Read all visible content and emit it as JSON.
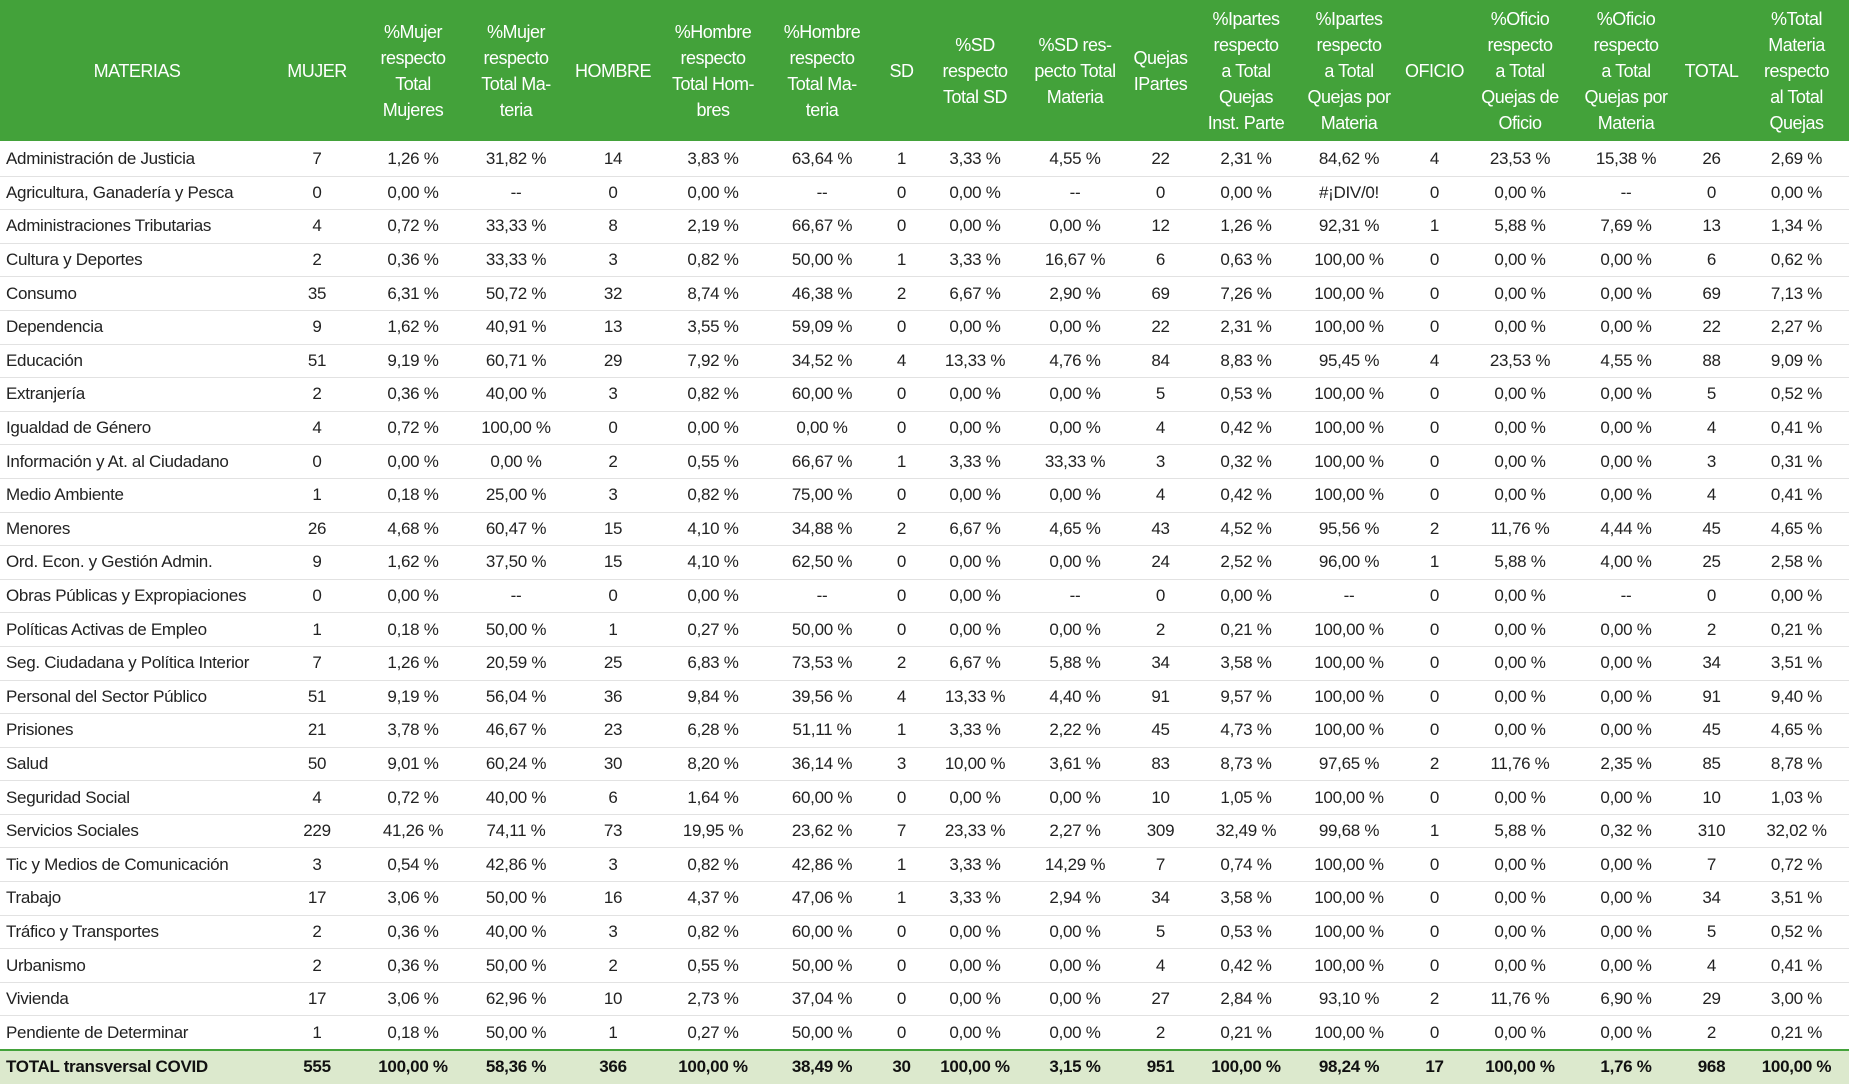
{
  "table": {
    "headers": [
      [
        "MATERIAS"
      ],
      [
        "MUJER"
      ],
      [
        "%Mujer",
        "respecto",
        "Total",
        "Mujeres"
      ],
      [
        "%Mujer",
        "respecto",
        "Total Ma-",
        "teria"
      ],
      [
        "HOMBRE"
      ],
      [
        "%Hombre",
        "respecto",
        "Total Hom-",
        "bres"
      ],
      [
        "%Hombre",
        "respecto",
        "Total Ma-",
        "teria"
      ],
      [
        "SD"
      ],
      [
        "%SD",
        "respecto",
        "Total SD"
      ],
      [
        "%SD res-",
        "pecto Total",
        "Materia"
      ],
      [
        "Quejas",
        "IPartes"
      ],
      [
        "%Ipartes",
        "respecto",
        "a Total",
        "Quejas",
        "Inst. Parte"
      ],
      [
        "%Ipartes",
        "respecto",
        "a Total",
        "Quejas por",
        "Materia"
      ],
      [
        "OFICIO"
      ],
      [
        "%Oficio",
        "respecto",
        "a Total",
        "Quejas de",
        "Oficio"
      ],
      [
        "%Oficio",
        "respecto",
        "a Total",
        "Quejas por",
        "Materia"
      ],
      [
        "TOTAL"
      ],
      [
        "%Total",
        "Materia",
        "respecto",
        "al Total",
        "Quejas"
      ]
    ],
    "rows": [
      [
        "Administración de Justicia",
        7,
        "1,26 %",
        "31,82 %",
        14,
        "3,83 %",
        "63,64 %",
        1,
        "3,33 %",
        "4,55 %",
        22,
        "2,31 %",
        "84,62 %",
        4,
        "23,53 %",
        "15,38 %",
        26,
        "2,69 %"
      ],
      [
        "Agricultura, Ganadería y Pesca",
        0,
        "0,00 %",
        "--",
        0,
        "0,00 %",
        "--",
        0,
        "0,00 %",
        "--",
        0,
        "0,00 %",
        "#¡DIV/0!",
        0,
        "0,00 %",
        "--",
        0,
        "0,00 %"
      ],
      [
        "Administraciones Tributarias",
        4,
        "0,72 %",
        "33,33 %",
        8,
        "2,19 %",
        "66,67 %",
        0,
        "0,00 %",
        "0,00 %",
        12,
        "1,26 %",
        "92,31 %",
        1,
        "5,88 %",
        "7,69 %",
        13,
        "1,34 %"
      ],
      [
        "Cultura y Deportes",
        2,
        "0,36 %",
        "33,33 %",
        3,
        "0,82 %",
        "50,00 %",
        1,
        "3,33 %",
        "16,67 %",
        6,
        "0,63 %",
        "100,00 %",
        0,
        "0,00 %",
        "0,00 %",
        6,
        "0,62 %"
      ],
      [
        "Consumo",
        35,
        "6,31 %",
        "50,72 %",
        32,
        "8,74 %",
        "46,38 %",
        2,
        "6,67 %",
        "2,90 %",
        69,
        "7,26 %",
        "100,00 %",
        0,
        "0,00 %",
        "0,00 %",
        69,
        "7,13 %"
      ],
      [
        "Dependencia",
        9,
        "1,62 %",
        "40,91 %",
        13,
        "3,55 %",
        "59,09 %",
        0,
        "0,00 %",
        "0,00 %",
        22,
        "2,31 %",
        "100,00 %",
        0,
        "0,00 %",
        "0,00 %",
        22,
        "2,27 %"
      ],
      [
        "Educación",
        51,
        "9,19 %",
        "60,71 %",
        29,
        "7,92 %",
        "34,52 %",
        4,
        "13,33 %",
        "4,76 %",
        84,
        "8,83 %",
        "95,45 %",
        4,
        "23,53 %",
        "4,55 %",
        88,
        "9,09 %"
      ],
      [
        "Extranjería",
        2,
        "0,36 %",
        "40,00 %",
        3,
        "0,82 %",
        "60,00 %",
        0,
        "0,00 %",
        "0,00 %",
        5,
        "0,53 %",
        "100,00 %",
        0,
        "0,00 %",
        "0,00 %",
        5,
        "0,52 %"
      ],
      [
        "Igualdad de Género",
        4,
        "0,72 %",
        "100,00 %",
        0,
        "0,00 %",
        "0,00 %",
        0,
        "0,00 %",
        "0,00 %",
        4,
        "0,42 %",
        "100,00 %",
        0,
        "0,00 %",
        "0,00 %",
        4,
        "0,41 %"
      ],
      [
        "Información y At. al Ciudadano",
        0,
        "0,00 %",
        "0,00 %",
        2,
        "0,55 %",
        "66,67 %",
        1,
        "3,33 %",
        "33,33 %",
        3,
        "0,32 %",
        "100,00 %",
        0,
        "0,00 %",
        "0,00 %",
        3,
        "0,31 %"
      ],
      [
        "Medio Ambiente",
        1,
        "0,18 %",
        "25,00 %",
        3,
        "0,82 %",
        "75,00 %",
        0,
        "0,00 %",
        "0,00 %",
        4,
        "0,42 %",
        "100,00 %",
        0,
        "0,00 %",
        "0,00 %",
        4,
        "0,41 %"
      ],
      [
        "Menores",
        26,
        "4,68 %",
        "60,47 %",
        15,
        "4,10 %",
        "34,88 %",
        2,
        "6,67 %",
        "4,65 %",
        43,
        "4,52 %",
        "95,56 %",
        2,
        "11,76 %",
        "4,44 %",
        45,
        "4,65 %"
      ],
      [
        "Ord. Econ. y Gestión Admin.",
        9,
        "1,62 %",
        "37,50 %",
        15,
        "4,10 %",
        "62,50 %",
        0,
        "0,00 %",
        "0,00 %",
        24,
        "2,52 %",
        "96,00 %",
        1,
        "5,88 %",
        "4,00 %",
        25,
        "2,58 %"
      ],
      [
        "Obras Públicas y Expropiaciones",
        0,
        "0,00 %",
        "--",
        0,
        "0,00 %",
        "--",
        0,
        "0,00 %",
        "--",
        0,
        "0,00 %",
        "--",
        0,
        "0,00 %",
        "--",
        0,
        "0,00 %"
      ],
      [
        "Políticas Activas de Empleo",
        1,
        "0,18 %",
        "50,00 %",
        1,
        "0,27 %",
        "50,00 %",
        0,
        "0,00 %",
        "0,00 %",
        2,
        "0,21 %",
        "100,00 %",
        0,
        "0,00 %",
        "0,00 %",
        2,
        "0,21 %"
      ],
      [
        "Seg. Ciudadana y Política Interior",
        7,
        "1,26 %",
        "20,59 %",
        25,
        "6,83 %",
        "73,53 %",
        2,
        "6,67 %",
        "5,88 %",
        34,
        "3,58 %",
        "100,00 %",
        0,
        "0,00 %",
        "0,00 %",
        34,
        "3,51 %"
      ],
      [
        "Personal del Sector Público",
        51,
        "9,19 %",
        "56,04 %",
        36,
        "9,84 %",
        "39,56 %",
        4,
        "13,33 %",
        "4,40 %",
        91,
        "9,57 %",
        "100,00 %",
        0,
        "0,00 %",
        "0,00 %",
        91,
        "9,40 %"
      ],
      [
        "Prisiones",
        21,
        "3,78 %",
        "46,67 %",
        23,
        "6,28 %",
        "51,11 %",
        1,
        "3,33 %",
        "2,22 %",
        45,
        "4,73 %",
        "100,00 %",
        0,
        "0,00 %",
        "0,00 %",
        45,
        "4,65 %"
      ],
      [
        "Salud",
        50,
        "9,01 %",
        "60,24 %",
        30,
        "8,20 %",
        "36,14 %",
        3,
        "10,00 %",
        "3,61 %",
        83,
        "8,73 %",
        "97,65 %",
        2,
        "11,76 %",
        "2,35 %",
        85,
        "8,78 %"
      ],
      [
        "Seguridad Social",
        4,
        "0,72 %",
        "40,00 %",
        6,
        "1,64 %",
        "60,00 %",
        0,
        "0,00 %",
        "0,00 %",
        10,
        "1,05 %",
        "100,00 %",
        0,
        "0,00 %",
        "0,00 %",
        10,
        "1,03 %"
      ],
      [
        "Servicios Sociales",
        229,
        "41,26 %",
        "74,11 %",
        73,
        "19,95 %",
        "23,62 %",
        7,
        "23,33 %",
        "2,27 %",
        309,
        "32,49 %",
        "99,68 %",
        1,
        "5,88 %",
        "0,32 %",
        310,
        "32,02 %"
      ],
      [
        "Tic y Medios de Comunicación",
        3,
        "0,54 %",
        "42,86 %",
        3,
        "0,82 %",
        "42,86 %",
        1,
        "3,33 %",
        "14,29 %",
        7,
        "0,74 %",
        "100,00 %",
        0,
        "0,00 %",
        "0,00 %",
        7,
        "0,72 %"
      ],
      [
        "Trabajo",
        17,
        "3,06 %",
        "50,00 %",
        16,
        "4,37 %",
        "47,06 %",
        1,
        "3,33 %",
        "2,94 %",
        34,
        "3,58 %",
        "100,00 %",
        0,
        "0,00 %",
        "0,00 %",
        34,
        "3,51 %"
      ],
      [
        "Tráfico y Transportes",
        2,
        "0,36 %",
        "40,00 %",
        3,
        "0,82 %",
        "60,00 %",
        0,
        "0,00 %",
        "0,00 %",
        5,
        "0,53 %",
        "100,00 %",
        0,
        "0,00 %",
        "0,00 %",
        5,
        "0,52 %"
      ],
      [
        "Urbanismo",
        2,
        "0,36 %",
        "50,00 %",
        2,
        "0,55 %",
        "50,00 %",
        0,
        "0,00 %",
        "0,00 %",
        4,
        "0,42 %",
        "100,00 %",
        0,
        "0,00 %",
        "0,00 %",
        4,
        "0,41 %"
      ],
      [
        "Vivienda",
        17,
        "3,06 %",
        "62,96 %",
        10,
        "2,73 %",
        "37,04 %",
        0,
        "0,00 %",
        "0,00 %",
        27,
        "2,84 %",
        "93,10 %",
        2,
        "11,76 %",
        "6,90 %",
        29,
        "3,00 %"
      ],
      [
        "Pendiente de Determinar",
        1,
        "0,18 %",
        "50,00 %",
        1,
        "0,27 %",
        "50,00 %",
        0,
        "0,00 %",
        "0,00 %",
        2,
        "0,21 %",
        "100,00 %",
        0,
        "0,00 %",
        "0,00 %",
        2,
        "0,21 %"
      ]
    ],
    "total": [
      "TOTAL transversal COVID",
      555,
      "100,00 %",
      "58,36 %",
      366,
      "100,00 %",
      "38,49 %",
      30,
      "100,00 %",
      "3,15 %",
      951,
      "100,00 %",
      "98,24 %",
      17,
      "100,00 %",
      "1,76 %",
      968,
      "100,00 %"
    ]
  }
}
